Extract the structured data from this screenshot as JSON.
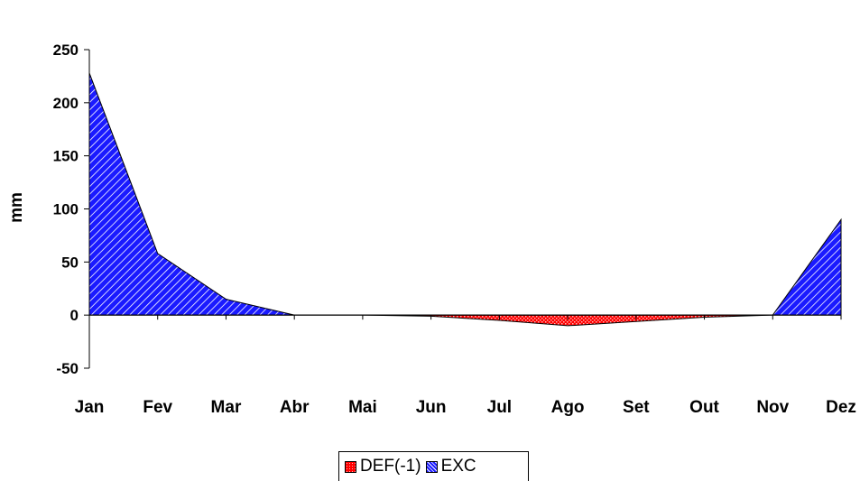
{
  "chart_data": {
    "type": "area",
    "categories": [
      "Jan",
      "Fev",
      "Mar",
      "Abr",
      "Mai",
      "Jun",
      "Jul",
      "Ago",
      "Set",
      "Out",
      "Nov",
      "Dez"
    ],
    "series": [
      {
        "name": "DEF(-1)",
        "values": [
          0,
          0,
          0,
          0,
          0,
          -1,
          -5,
          -10,
          -6,
          -2,
          0,
          0
        ],
        "color": "#ff0000",
        "pattern": "dotted"
      },
      {
        "name": "EXC",
        "values": [
          228,
          58,
          15,
          0,
          0,
          0,
          0,
          0,
          0,
          0,
          0,
          90
        ],
        "color": "#1a1aff",
        "pattern": "diagonal-hatch"
      }
    ],
    "ylabel": "mm",
    "yticks": [
      250,
      200,
      150,
      100,
      50,
      0,
      -50
    ],
    "ylim": [
      -50,
      250
    ],
    "grid": false,
    "legend_position": "bottom"
  }
}
